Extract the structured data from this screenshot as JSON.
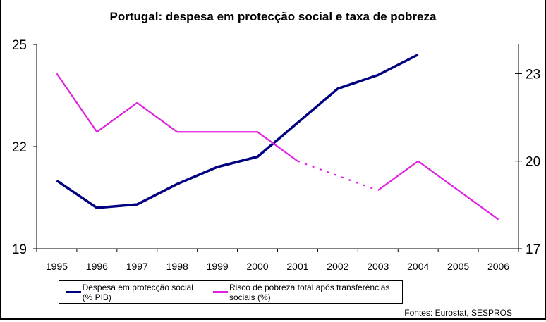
{
  "chart_data": {
    "type": "line",
    "title": "Portugal: despesa em protecção social e taxa de pobreza",
    "categories": [
      "1995",
      "1996",
      "1997",
      "1998",
      "1999",
      "2000",
      "2001",
      "2002",
      "2003",
      "2004",
      "2005",
      "2006"
    ],
    "y_left": {
      "range": [
        19,
        25
      ],
      "ticks": [
        "19",
        "22",
        "25"
      ]
    },
    "y_right": {
      "range": [
        17,
        24
      ],
      "ticks": [
        "17",
        "20",
        "23"
      ]
    },
    "grid": false,
    "legend_position": "bottom",
    "series": [
      {
        "name": "Despesa em protecção social (% PIB)",
        "axis": "left",
        "color": "#000080",
        "values": [
          21.0,
          20.2,
          20.3,
          20.9,
          21.4,
          21.7,
          22.7,
          23.7,
          24.1,
          24.7,
          null,
          null
        ]
      },
      {
        "name": "Risco de pobreza total após transferências sociais (%)",
        "axis": "right",
        "color": "#e020e0",
        "values": [
          23,
          21,
          22,
          21,
          21,
          21,
          20,
          null,
          19,
          20,
          19,
          18
        ],
        "gap_style": "dashed"
      }
    ]
  },
  "source": "Fontes: Eurostat, SESPROS"
}
